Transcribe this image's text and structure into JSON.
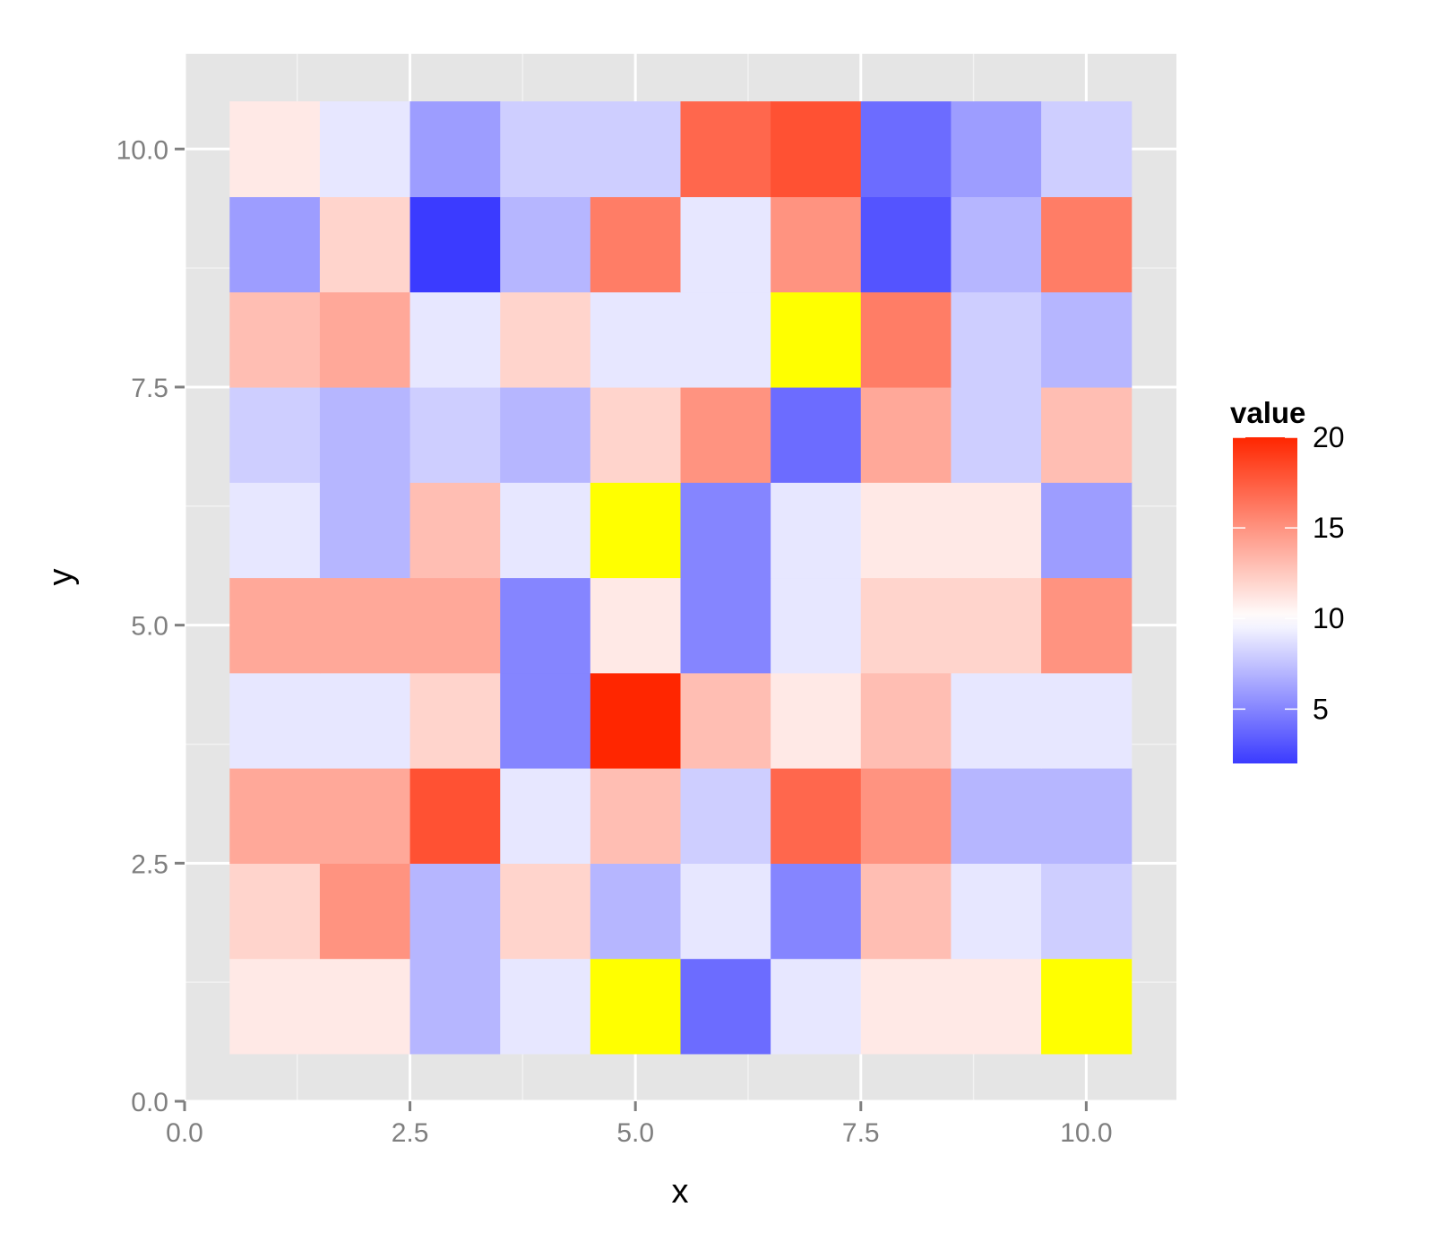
{
  "chart_data": {
    "type": "heatmap",
    "xlabel": "x",
    "ylabel": "y",
    "xlim": [
      0,
      11
    ],
    "ylim": [
      0,
      11
    ],
    "x_ticks": [
      0,
      2.5,
      5,
      7.5,
      10
    ],
    "y_ticks": [
      0,
      2.5,
      5,
      7.5,
      10
    ],
    "x_tick_labels": [
      "0.0",
      "2.5",
      "5.0",
      "7.5",
      "10.0"
    ],
    "y_tick_labels": [
      "0.0",
      "2.5",
      "5.0",
      "7.5",
      "10.0"
    ],
    "grid": true,
    "x": [
      1,
      2,
      3,
      4,
      5,
      6,
      7,
      8,
      9,
      10
    ],
    "y": [
      1,
      2,
      3,
      4,
      5,
      6,
      7,
      8,
      9,
      10
    ],
    "values": [
      [
        11,
        11,
        7,
        9,
        null,
        4,
        9,
        11,
        11,
        null
      ],
      [
        12,
        15,
        7,
        12,
        7,
        9,
        5,
        13,
        9,
        8
      ],
      [
        14,
        14,
        18,
        9,
        13,
        8,
        17,
        15,
        7,
        7
      ],
      [
        9,
        9,
        12,
        5,
        20,
        13,
        11,
        13,
        9,
        9
      ],
      [
        14,
        14,
        14,
        5,
        11,
        5,
        9,
        12,
        12,
        15
      ],
      [
        9,
        7,
        13,
        9,
        null,
        5,
        9,
        11,
        11,
        6
      ],
      [
        8,
        7,
        8,
        7,
        12,
        15,
        4,
        14,
        8,
        13
      ],
      [
        13,
        14,
        9,
        12,
        9,
        9,
        null,
        16,
        8,
        7
      ],
      [
        6,
        12,
        2,
        7,
        16,
        9,
        15,
        3,
        7,
        16
      ],
      [
        11,
        9,
        6,
        8,
        8,
        17,
        18,
        4,
        6,
        8
      ]
    ],
    "na_color": "#FFFF00",
    "colorscale": {
      "low": "#3B3BFF",
      "mid": "#FFFFFF",
      "high": "#FF2600",
      "midpoint": 10,
      "min": 2,
      "max": 20
    },
    "legend": {
      "title": "value",
      "position": "right",
      "breaks": [
        5,
        10,
        15,
        20
      ],
      "labels": [
        "5",
        "10",
        "15",
        "20"
      ]
    },
    "colors": {
      "panel_background": "#E5E5E5",
      "grid_major": "#FFFFFF",
      "grid_minor": "#F2F2F2",
      "tick": "#7F7F7F"
    }
  }
}
